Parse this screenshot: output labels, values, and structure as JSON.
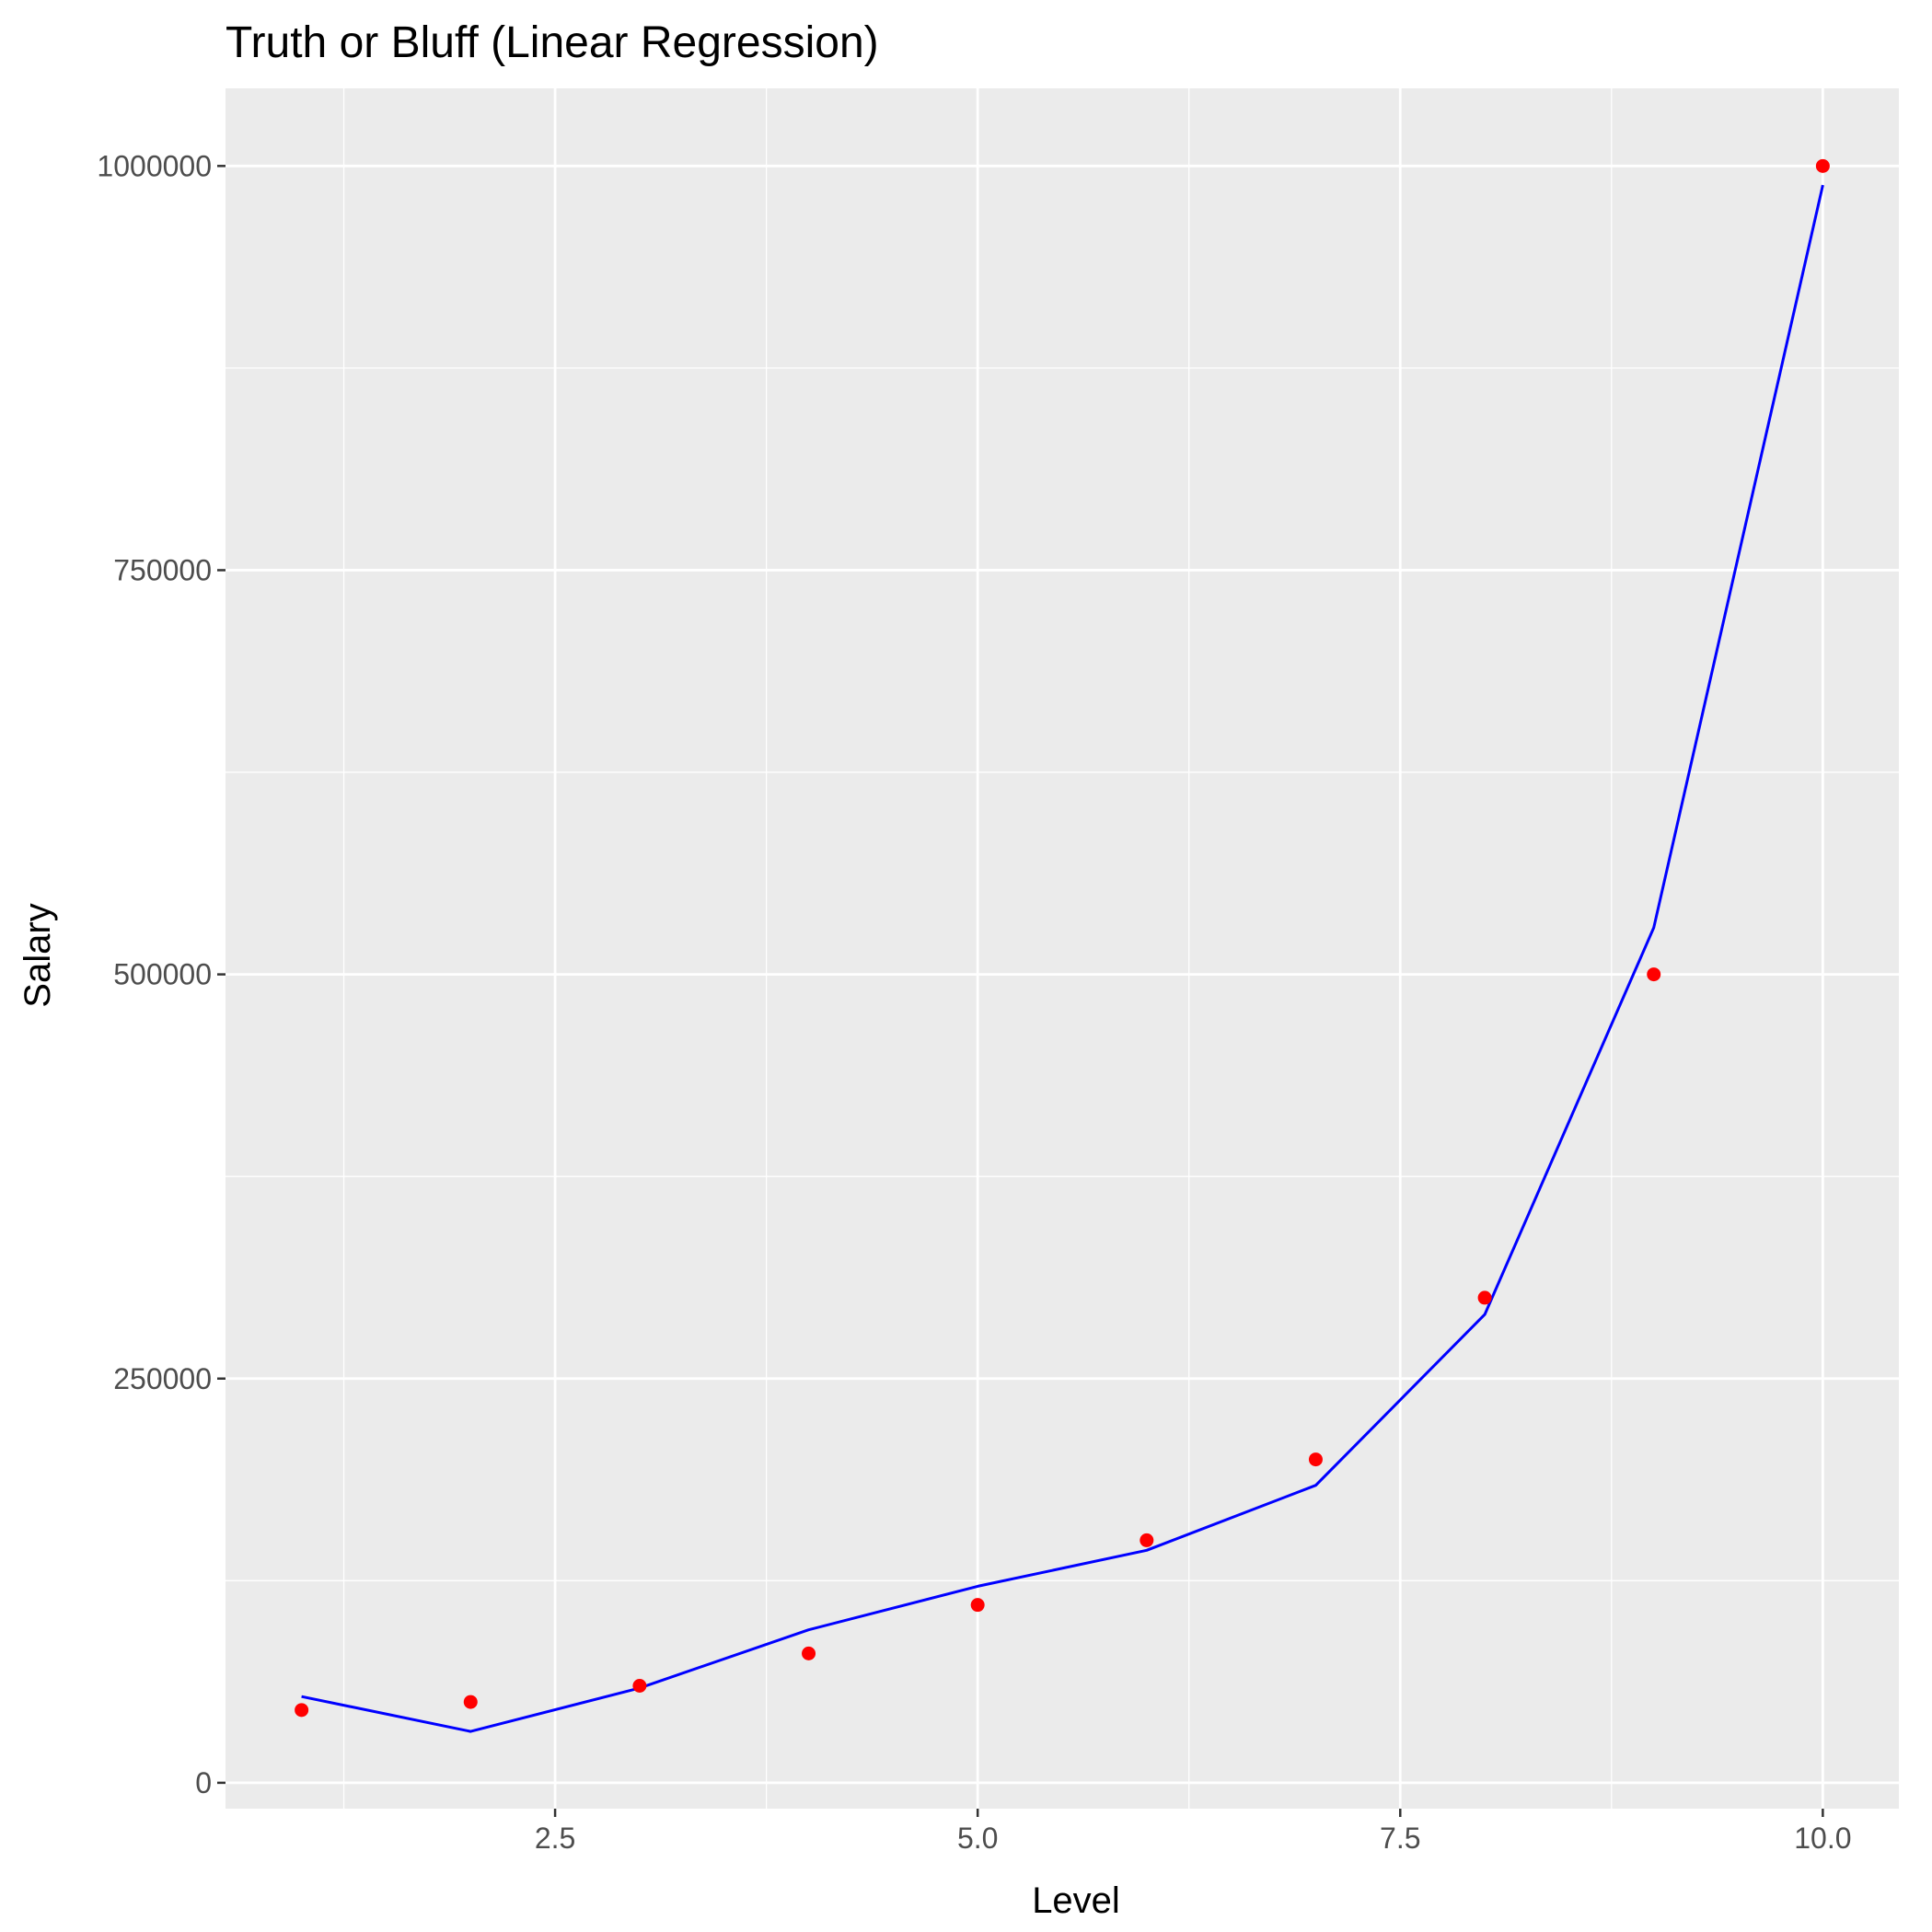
{
  "chart_data": {
    "type": "scatter",
    "title": "Truth or Bluff (Linear Regression)",
    "xlabel": "Level",
    "ylabel": "Salary",
    "xlim": [
      0.55,
      10.45
    ],
    "ylim": [
      -16000,
      1048000
    ],
    "x_ticks": [
      2.5,
      5.0,
      7.5,
      10.0
    ],
    "x_tick_labels": [
      "2.5",
      "5.0",
      "7.5",
      "10.0"
    ],
    "y_ticks": [
      0,
      250000,
      500000,
      750000,
      1000000
    ],
    "y_tick_labels": [
      "0",
      "250000",
      "500000",
      "750000",
      "1000000"
    ],
    "grid": true,
    "legend": "none",
    "series": [
      {
        "kind": "points",
        "color": "#ff0000",
        "x": [
          1,
          2,
          3,
          4,
          5,
          6,
          7,
          8,
          9,
          10
        ],
        "y": [
          45000,
          50000,
          60000,
          80000,
          110000,
          150000,
          200000,
          300000,
          500000,
          1000000
        ]
      },
      {
        "kind": "line",
        "color": "#0000ff",
        "x": [
          1,
          2,
          3,
          4,
          5,
          6,
          7,
          8,
          9,
          10
        ],
        "y": [
          53357,
          31760,
          58643,
          94632,
          121525,
          143825,
          184003,
          289658,
          528869,
          988168
        ]
      }
    ]
  }
}
